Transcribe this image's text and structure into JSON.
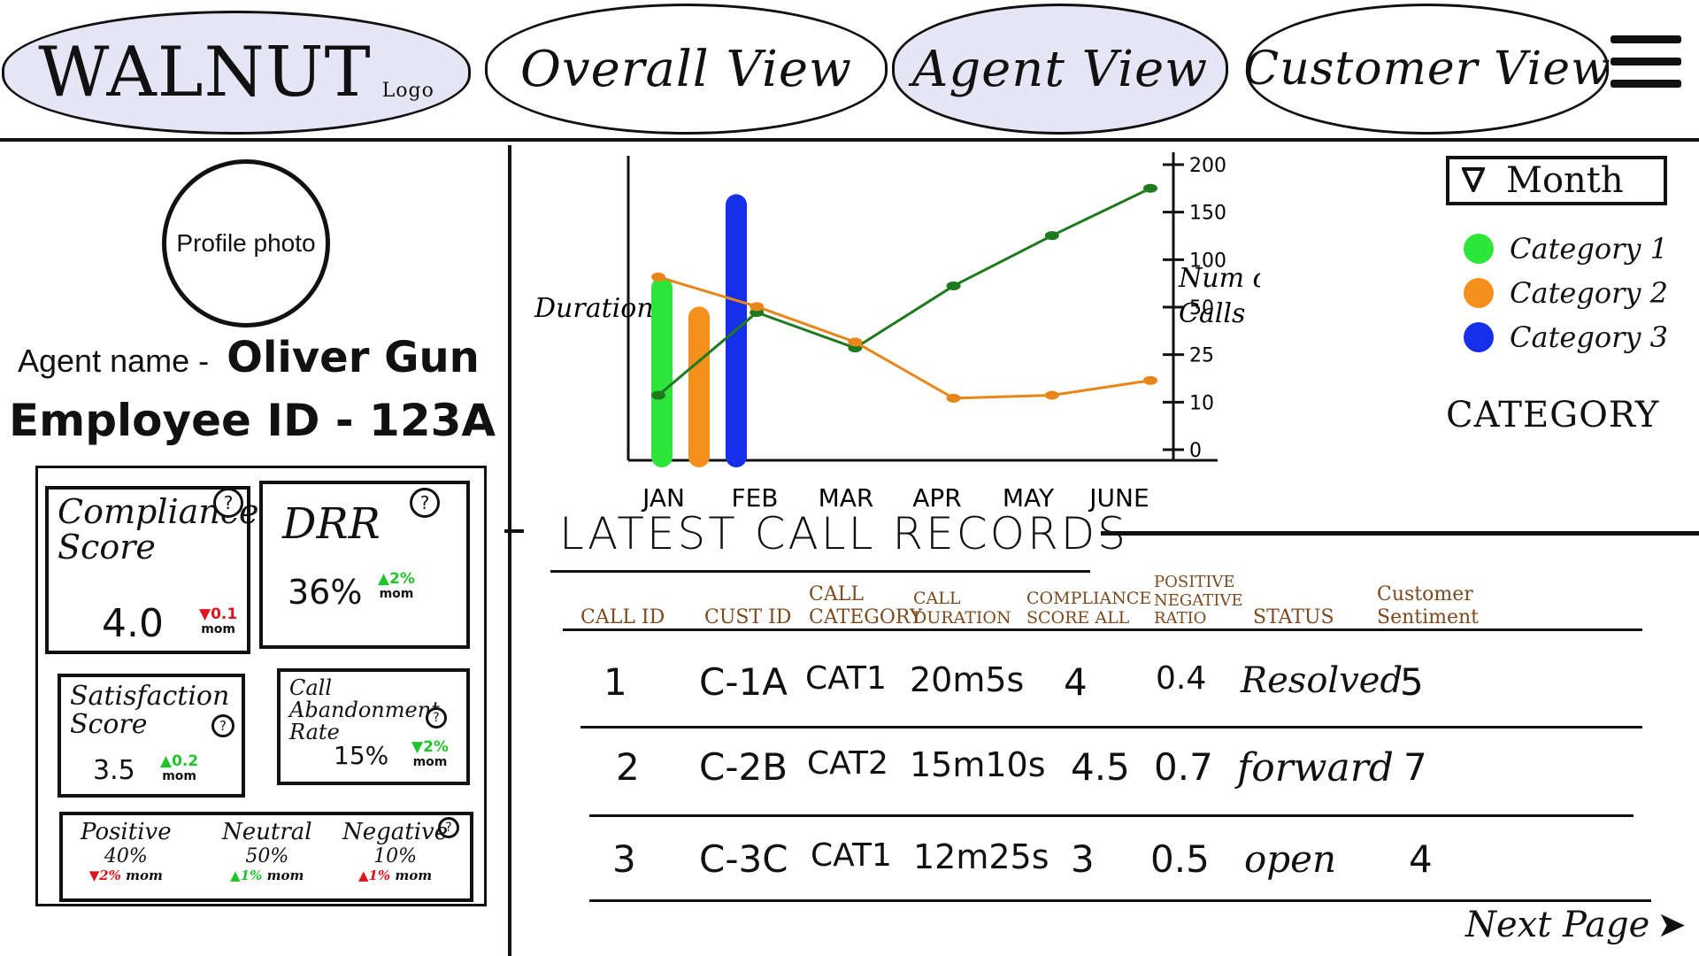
{
  "nav": {
    "logo": "WALNUT",
    "logo_sub": "Logo",
    "tabs": [
      {
        "label": "Overall View",
        "active": false
      },
      {
        "label": "Agent View",
        "active": true
      },
      {
        "label": "Customer View",
        "active": false
      }
    ],
    "menu_icon": "hamburger-menu-icon"
  },
  "profile": {
    "photo_label": "Profile photo",
    "agent_label": "Agent name -",
    "agent_name": "Oliver Gun",
    "employee_id": "Employee ID - 123A"
  },
  "kpis": {
    "compliance": {
      "title": "Compliance Score",
      "value": "4.0",
      "delta": "▼0.1",
      "delta_unit": "mom",
      "direction": "down",
      "help": "?"
    },
    "drr": {
      "title": "DRR",
      "value": "36%",
      "delta": "▲2%",
      "delta_unit": "mom",
      "direction": "up",
      "help": "?"
    },
    "satisfaction": {
      "title": "Satisfaction Score",
      "value": "3.5",
      "delta": "▲0.2",
      "delta_unit": "mom",
      "direction": "up",
      "help": "?"
    },
    "abandonment": {
      "title": "Call Abandonment Rate",
      "value": "15%",
      "delta": "▼2%",
      "delta_unit": "mom",
      "direction": "up",
      "help": "?"
    },
    "sentiment": {
      "help": "?",
      "items": [
        {
          "name": "Positive",
          "value": "40%",
          "delta": "▼2%",
          "delta_unit": "mom",
          "direction": "down"
        },
        {
          "name": "Neutral",
          "value": "50%",
          "delta": "▲1%",
          "delta_unit": "mom",
          "direction": "up"
        },
        {
          "name": "Negative",
          "value": "10%",
          "delta": "▲1%",
          "delta_unit": "mom",
          "direction": "down"
        }
      ]
    }
  },
  "chart_controls": {
    "filter_icon": "filter-dropdown-icon",
    "filter_label": "Month",
    "legend": [
      {
        "label": "Category 1",
        "color": "#2ee63a"
      },
      {
        "label": "Category 2",
        "color": "#f5901c"
      },
      {
        "label": "Category 3",
        "color": "#1530e8"
      }
    ],
    "legend_title": "CATEGORY"
  },
  "chart_data": {
    "type": "bar",
    "categories": [
      "JAN",
      "FEB",
      "MAR",
      "APR",
      "MAY",
      "JUNE"
    ],
    "ylabel": "Duration",
    "y2label": "Num of Calls",
    "y2_ticks": [
      "0",
      "10",
      "25",
      "50",
      "100",
      "150",
      "200"
    ],
    "bar_series": [
      {
        "name": "Category 1",
        "color": "#2ee63a",
        "values": [
          62
        ]
      },
      {
        "name": "Category 2",
        "color": "#f5901c",
        "values": [
          52
        ]
      },
      {
        "name": "Category 3",
        "color": "#1530e8",
        "values": [
          90
        ]
      }
    ],
    "line_series": [
      {
        "color": "#1f7a1f",
        "values": [
          22,
          50,
          38,
          59,
          76,
          92
        ]
      },
      {
        "color": "#e8861a",
        "values": [
          62,
          52,
          40,
          21,
          22,
          27
        ]
      }
    ]
  },
  "records": {
    "title": "LATEST CALL RECORDS",
    "columns": [
      "CALL ID",
      "CUST ID",
      "CALL CATEGORY",
      "CALL DURATION",
      "COMPLIANCE SCORE ALL",
      "POSITIVE NEGATIVE RATIO",
      "STATUS",
      "Customer Sentiment"
    ],
    "rows": [
      [
        "1",
        "C-1A",
        "CAT1",
        "20m5s",
        "4",
        "0.4",
        "Resolved",
        "5"
      ],
      [
        "2",
        "C-2B",
        "CAT2",
        "15m10s",
        "4.5",
        "0.7",
        "forward",
        "7"
      ],
      [
        "3",
        "C-3C",
        "CAT1",
        "12m25s",
        "3",
        "0.5",
        "open",
        "4"
      ]
    ],
    "next_label": "Next Page",
    "next_icon": "arrow-right-icon"
  }
}
